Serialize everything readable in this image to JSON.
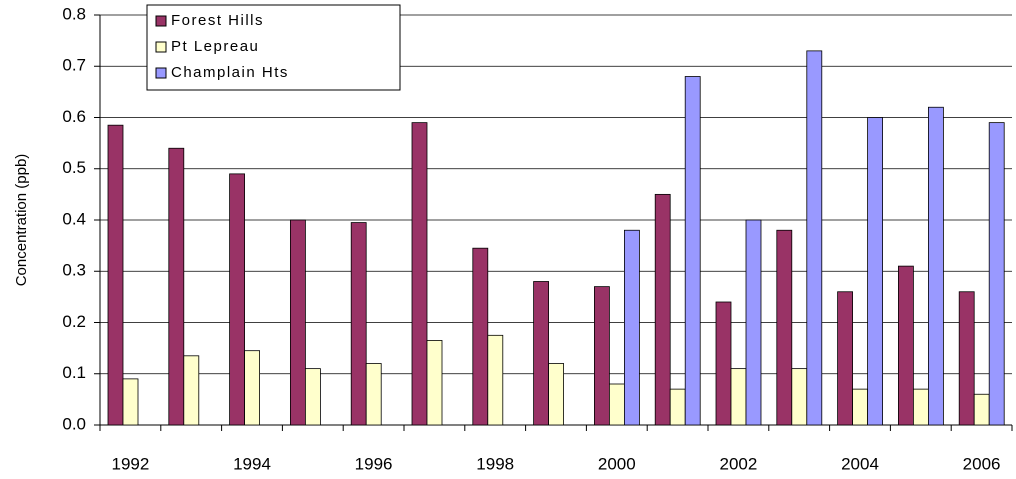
{
  "chart_data": {
    "type": "bar",
    "y_label": "Concentration (ppb)",
    "categories": [
      "1992",
      null,
      "1994",
      null,
      "1996",
      null,
      "1998",
      null,
      "2000",
      null,
      "2002",
      null,
      "2004",
      null,
      "2006"
    ],
    "series": [
      {
        "name": "Forest Hills",
        "color": "#993366",
        "values": [
          0.585,
          0.54,
          0.49,
          0.4,
          0.395,
          0.59,
          0.345,
          0.28,
          0.27,
          0.45,
          0.24,
          0.38,
          0.26,
          0.31,
          0.26
        ]
      },
      {
        "name": "Pt Lepreau",
        "color": "#ffffcc",
        "values": [
          0.09,
          0.135,
          0.145,
          0.11,
          0.12,
          0.165,
          0.175,
          0.12,
          0.08,
          0.07,
          0.11,
          0.11,
          0.07,
          0.07,
          0.06
        ]
      },
      {
        "name": "Champlain Hts",
        "color": "#9999ff",
        "values": [
          null,
          null,
          null,
          null,
          null,
          null,
          null,
          null,
          0.38,
          0.68,
          0.4,
          0.73,
          0.6,
          0.62,
          0.59
        ]
      }
    ],
    "ylim": [
      0,
      0.8
    ],
    "yticks": [
      {
        "value": 0,
        "label": "0.0"
      },
      0.1,
      0.2,
      0.3,
      0.4,
      0.5,
      0.6,
      0.7,
      0.8
    ],
    "grid": true,
    "legend": "upper left"
  }
}
